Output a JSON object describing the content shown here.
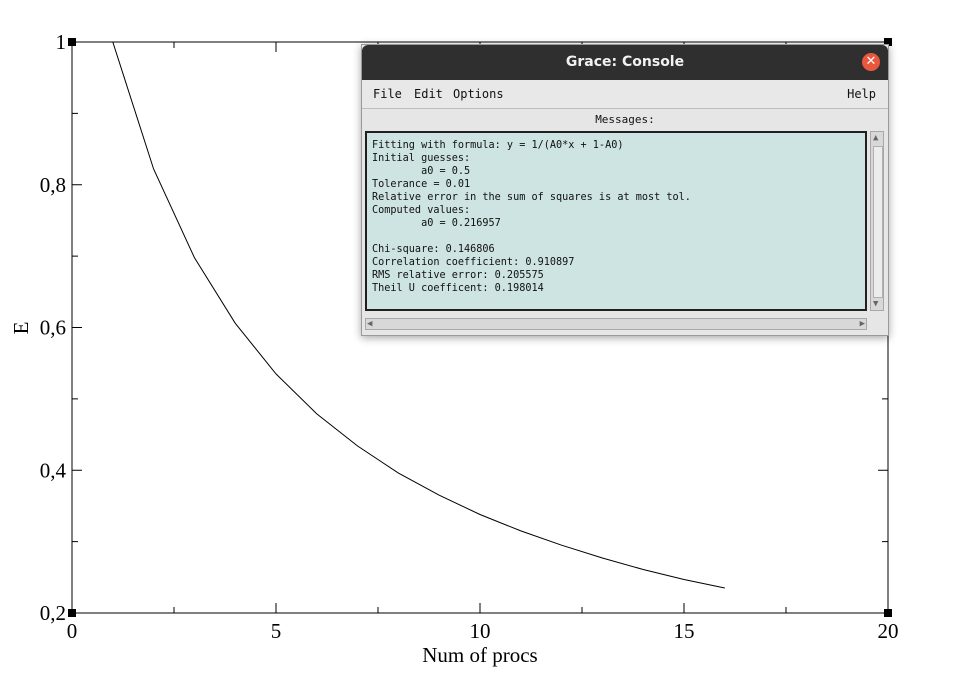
{
  "chart_data": {
    "type": "line",
    "xlabel": "Num of procs",
    "ylabel": "E",
    "xlim": [
      0,
      20
    ],
    "ylim": [
      0.2,
      1
    ],
    "x_ticks": [
      "0",
      "5",
      "10",
      "15",
      "20"
    ],
    "y_ticks": [
      "0,2",
      "0,4",
      "0,6",
      "0,8",
      "1"
    ],
    "series": [
      {
        "x": [
          1,
          2,
          3,
          4,
          5,
          6,
          7,
          8,
          9,
          10,
          11,
          12,
          13,
          14,
          15,
          16
        ],
        "values": [
          1.0,
          0.822,
          0.698,
          0.606,
          0.535,
          0.479,
          0.434,
          0.396,
          0.365,
          0.338,
          0.315,
          0.295,
          0.277,
          0.261,
          0.247,
          0.235
        ]
      }
    ]
  },
  "console": {
    "title": "Grace: Console",
    "menu": {
      "file": "File",
      "edit": "Edit",
      "options": "Options",
      "help": "Help"
    },
    "messages_label": "Messages:",
    "messages": [
      "Fitting with formula: y = 1/(A0*x + 1-A0)",
      "Initial guesses:",
      "        a0 = 0.5",
      "Tolerance = 0.01",
      "Relative error in the sum of squares is at most tol.",
      "Computed values:",
      "        a0 = 0.216957",
      "",
      "Chi-square: 0.146806",
      "Correlation coefficient: 0.910897",
      "RMS relative error: 0.205575",
      "Theil U coefficent: 0.198014"
    ]
  }
}
